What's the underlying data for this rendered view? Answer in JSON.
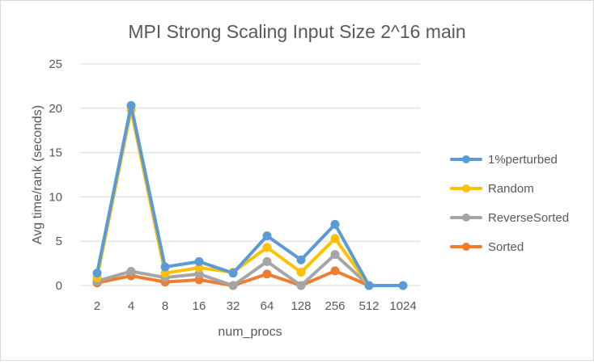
{
  "chart_data": {
    "type": "line",
    "title": "MPI Strong Scaling Input Size 2^16 main",
    "xlabel": "num_procs",
    "ylabel": "Avg time/rank (seconds)",
    "categories": [
      "2",
      "4",
      "8",
      "16",
      "32",
      "64",
      "128",
      "256",
      "512",
      "1024"
    ],
    "ylim": [
      0,
      25
    ],
    "yticks": [
      0,
      5,
      10,
      15,
      20,
      25
    ],
    "grid": true,
    "legend_position": "right",
    "series": [
      {
        "name": "Sorted",
        "color": "#ED7D31",
        "values": [
          0.3,
          1.1,
          0.4,
          0.65,
          0.0,
          1.3,
          0.0,
          1.65,
          0.0,
          null
        ]
      },
      {
        "name": "ReverseSorted",
        "color": "#A5A5A5",
        "values": [
          0.5,
          1.6,
          0.9,
          1.3,
          0.0,
          2.7,
          0.0,
          3.5,
          0.0,
          null
        ]
      },
      {
        "name": "Random",
        "color": "#FFC000",
        "values": [
          0.9,
          19.8,
          1.4,
          2.0,
          1.5,
          4.3,
          1.5,
          5.3,
          0.0,
          null
        ]
      },
      {
        "name": "1%perturbed",
        "color": "#5B9BD5",
        "values": [
          1.4,
          20.3,
          2.1,
          2.7,
          1.4,
          5.6,
          2.9,
          6.9,
          0.0,
          0.0
        ]
      }
    ],
    "legend_order": [
      "1%perturbed",
      "Random",
      "ReverseSorted",
      "Sorted"
    ]
  }
}
